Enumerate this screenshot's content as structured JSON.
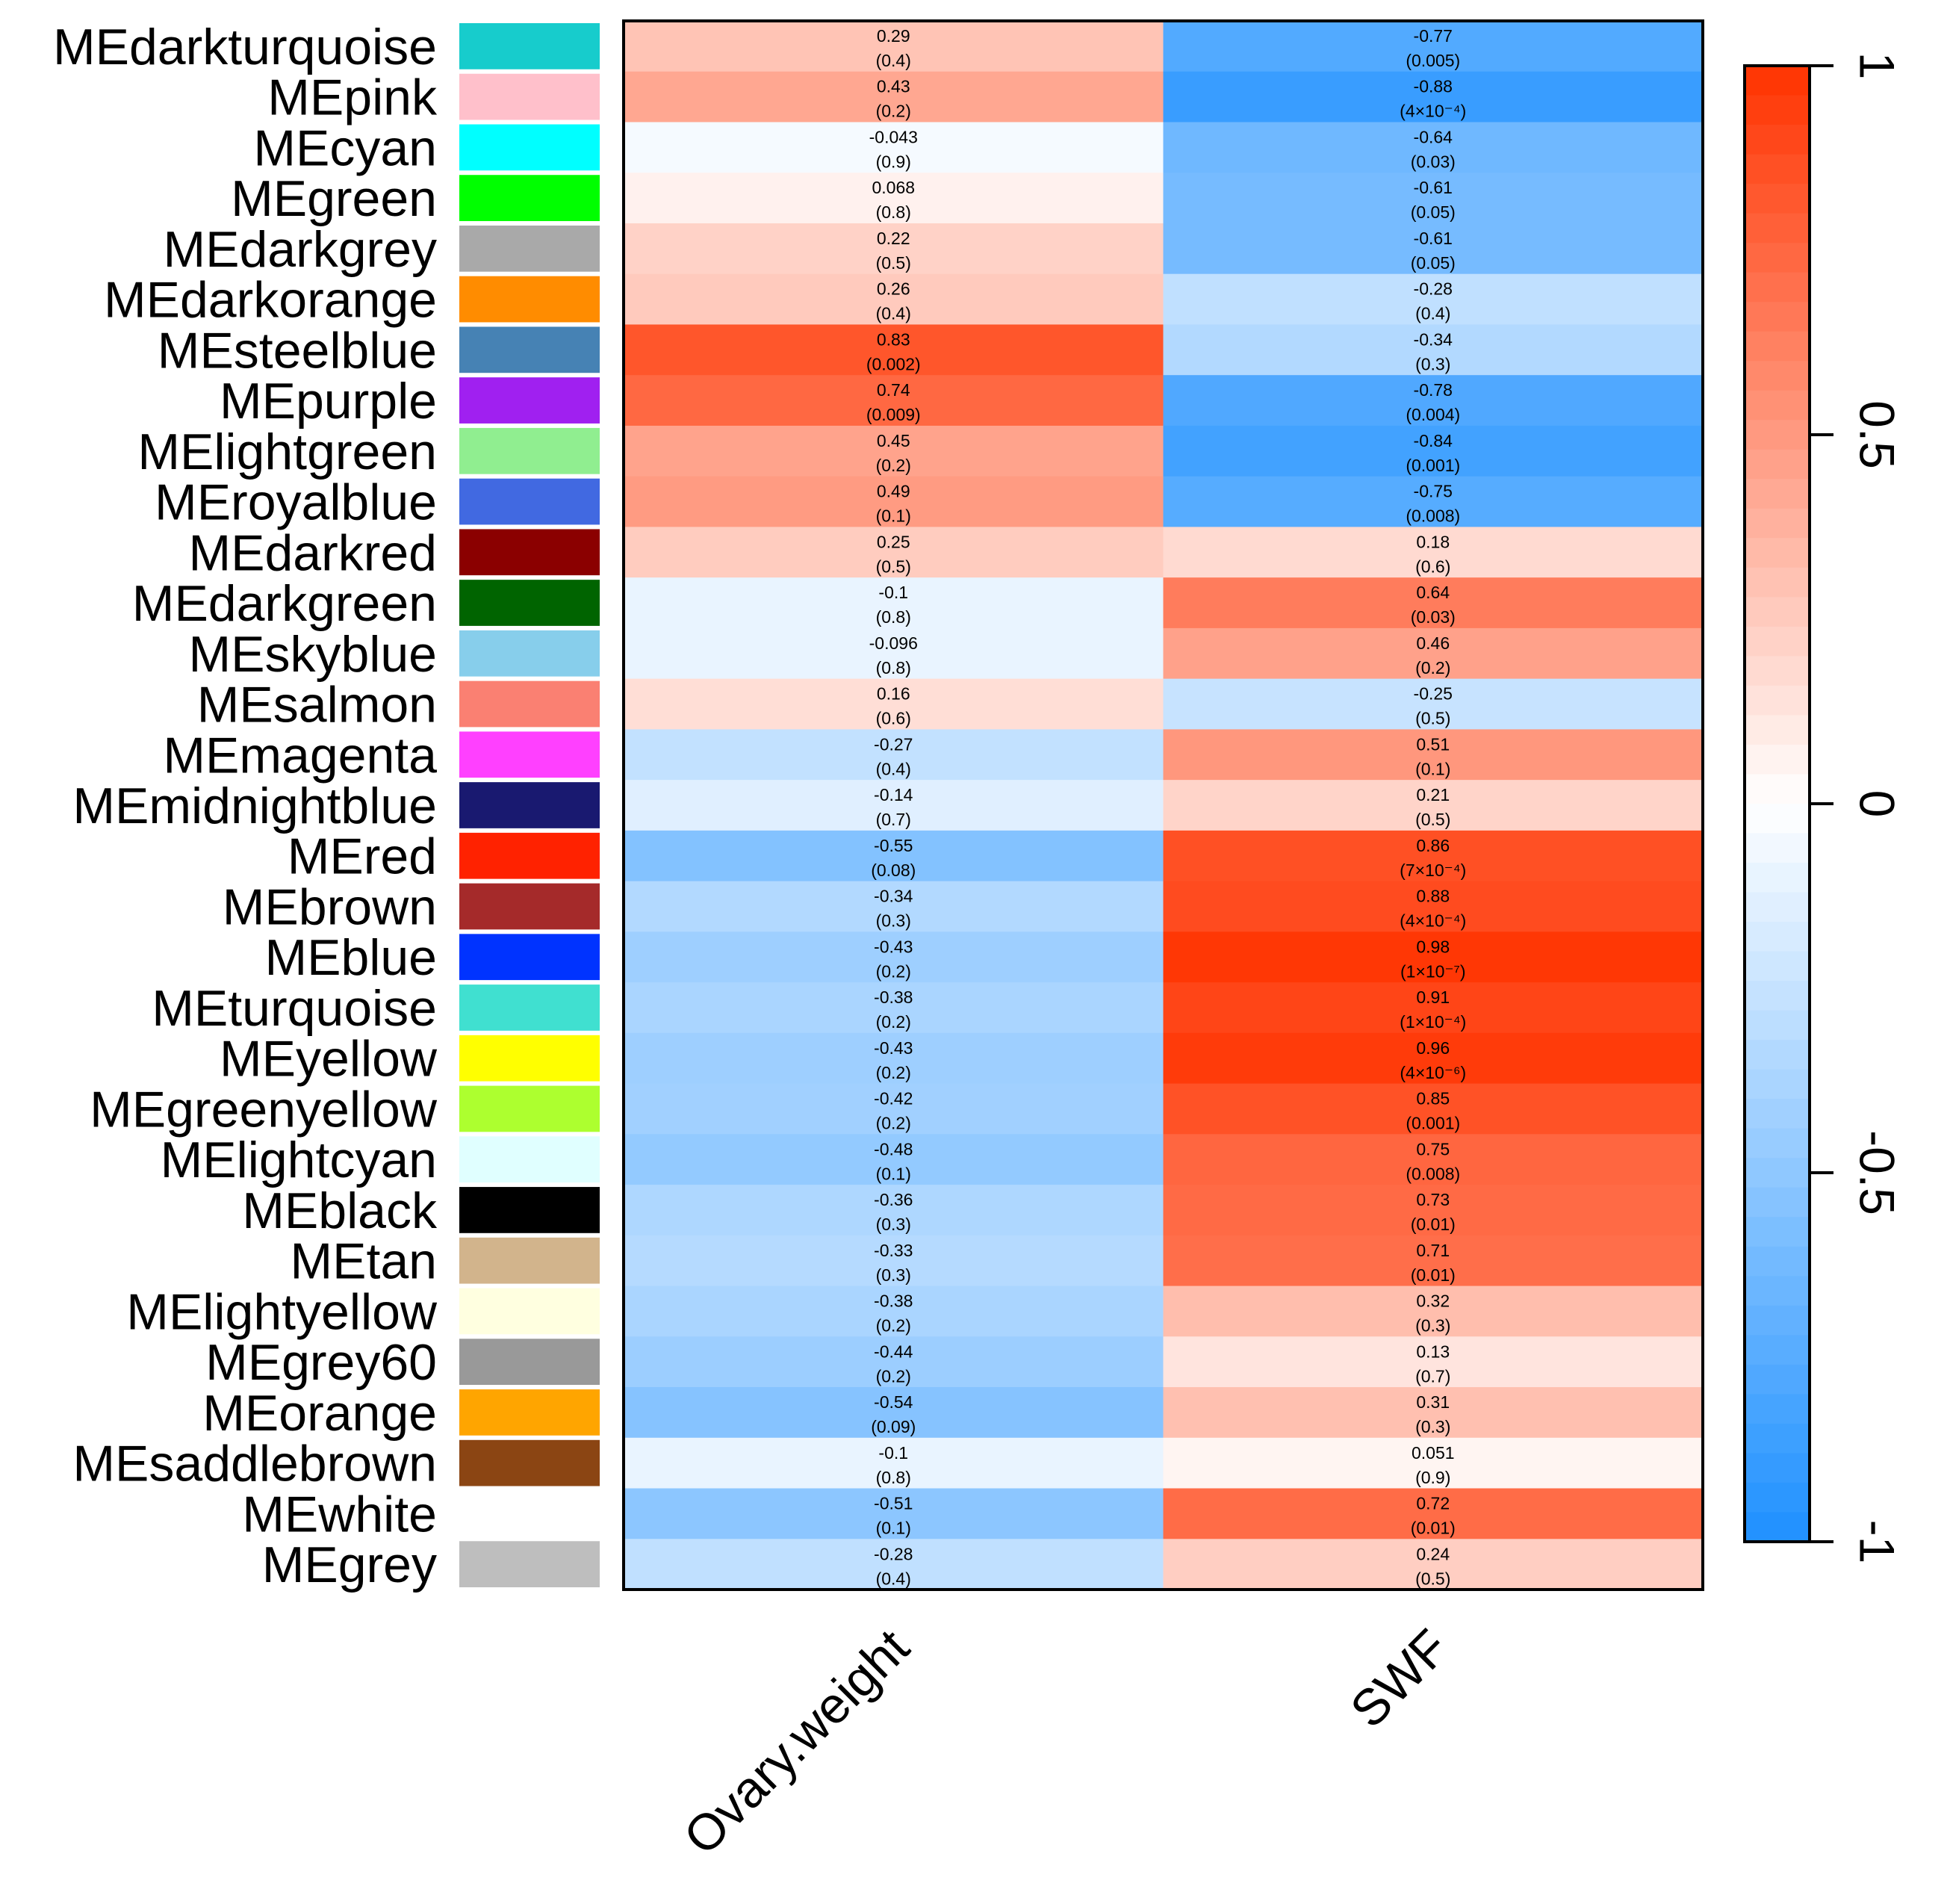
{
  "chart_data": {
    "type": "heatmap",
    "columns": [
      "Ovary.weight",
      "SWF"
    ],
    "rows": [
      {
        "label": "MEdarkturquoise",
        "module_color": "#17CCCC",
        "cells": [
          {
            "r": 0.29,
            "p": "(0.4)"
          },
          {
            "r": -0.77,
            "p": "(0.005)"
          }
        ]
      },
      {
        "label": "MEpink",
        "module_color": "#FFC0CB",
        "cells": [
          {
            "r": 0.43,
            "p": "(0.2)"
          },
          {
            "r": -0.88,
            "p": "(4×10⁻⁴)"
          }
        ]
      },
      {
        "label": "MEcyan",
        "module_color": "#00FFFF",
        "cells": [
          {
            "r": -0.043,
            "p": "(0.9)"
          },
          {
            "r": -0.64,
            "p": "(0.03)"
          }
        ]
      },
      {
        "label": "MEgreen",
        "module_color": "#00FF00",
        "cells": [
          {
            "r": 0.068,
            "p": "(0.8)"
          },
          {
            "r": -0.61,
            "p": "(0.05)"
          }
        ]
      },
      {
        "label": "MEdarkgrey",
        "module_color": "#A9A9A9",
        "cells": [
          {
            "r": 0.22,
            "p": "(0.5)"
          },
          {
            "r": -0.61,
            "p": "(0.05)"
          }
        ]
      },
      {
        "label": "MEdarkorange",
        "module_color": "#FF8C00",
        "cells": [
          {
            "r": 0.26,
            "p": "(0.4)"
          },
          {
            "r": -0.28,
            "p": "(0.4)"
          }
        ]
      },
      {
        "label": "MEsteelblue",
        "module_color": "#4682B4",
        "cells": [
          {
            "r": 0.83,
            "p": "(0.002)"
          },
          {
            "r": -0.34,
            "p": "(0.3)"
          }
        ]
      },
      {
        "label": "MEpurple",
        "module_color": "#A020F0",
        "cells": [
          {
            "r": 0.74,
            "p": "(0.009)"
          },
          {
            "r": -0.78,
            "p": "(0.004)"
          }
        ]
      },
      {
        "label": "MElightgreen",
        "module_color": "#90EE90",
        "cells": [
          {
            "r": 0.45,
            "p": "(0.2)"
          },
          {
            "r": -0.84,
            "p": "(0.001)"
          }
        ]
      },
      {
        "label": "MEroyalblue",
        "module_color": "#4169E1",
        "cells": [
          {
            "r": 0.49,
            "p": "(0.1)"
          },
          {
            "r": -0.75,
            "p": "(0.008)"
          }
        ]
      },
      {
        "label": "MEdarkred",
        "module_color": "#8B0000",
        "cells": [
          {
            "r": 0.25,
            "p": "(0.5)"
          },
          {
            "r": 0.18,
            "p": "(0.6)"
          }
        ]
      },
      {
        "label": "MEdarkgreen",
        "module_color": "#006400",
        "cells": [
          {
            "r": -0.1,
            "p": "(0.8)"
          },
          {
            "r": 0.64,
            "p": "(0.03)"
          }
        ]
      },
      {
        "label": "MEskyblue",
        "module_color": "#87CEEB",
        "cells": [
          {
            "r": -0.096,
            "p": "(0.8)"
          },
          {
            "r": 0.46,
            "p": "(0.2)"
          }
        ]
      },
      {
        "label": "MEsalmon",
        "module_color": "#FA8072",
        "cells": [
          {
            "r": 0.16,
            "p": "(0.6)"
          },
          {
            "r": -0.25,
            "p": "(0.5)"
          }
        ]
      },
      {
        "label": "MEmagenta",
        "module_color": "#FF40FF",
        "cells": [
          {
            "r": -0.27,
            "p": "(0.4)"
          },
          {
            "r": 0.51,
            "p": "(0.1)"
          }
        ]
      },
      {
        "label": "MEmidnightblue",
        "module_color": "#191970",
        "cells": [
          {
            "r": -0.14,
            "p": "(0.7)"
          },
          {
            "r": 0.21,
            "p": "(0.5)"
          }
        ]
      },
      {
        "label": "MEred",
        "module_color": "#FF2200",
        "cells": [
          {
            "r": -0.55,
            "p": "(0.08)"
          },
          {
            "r": 0.86,
            "p": "(7×10⁻⁴)"
          }
        ]
      },
      {
        "label": "MEbrown",
        "module_color": "#A52A2A",
        "cells": [
          {
            "r": -0.34,
            "p": "(0.3)"
          },
          {
            "r": 0.88,
            "p": "(4×10⁻⁴)"
          }
        ]
      },
      {
        "label": "MEblue",
        "module_color": "#0033FF",
        "cells": [
          {
            "r": -0.43,
            "p": "(0.2)"
          },
          {
            "r": 0.98,
            "p": "(1×10⁻⁷)"
          }
        ]
      },
      {
        "label": "MEturquoise",
        "module_color": "#40E0D0",
        "cells": [
          {
            "r": -0.38,
            "p": "(0.2)"
          },
          {
            "r": 0.91,
            "p": "(1×10⁻⁴)"
          }
        ]
      },
      {
        "label": "MEyellow",
        "module_color": "#FFFF00",
        "cells": [
          {
            "r": -0.43,
            "p": "(0.2)"
          },
          {
            "r": 0.96,
            "p": "(4×10⁻⁶)"
          }
        ]
      },
      {
        "label": "MEgreenyellow",
        "module_color": "#ADFF2F",
        "cells": [
          {
            "r": -0.42,
            "p": "(0.2)"
          },
          {
            "r": 0.85,
            "p": "(0.001)"
          }
        ]
      },
      {
        "label": "MElightcyan",
        "module_color": "#E0FFFF",
        "cells": [
          {
            "r": -0.48,
            "p": "(0.1)"
          },
          {
            "r": 0.75,
            "p": "(0.008)"
          }
        ]
      },
      {
        "label": "MEblack",
        "module_color": "#000000",
        "cells": [
          {
            "r": -0.36,
            "p": "(0.3)"
          },
          {
            "r": 0.73,
            "p": "(0.01)"
          }
        ]
      },
      {
        "label": "MEtan",
        "module_color": "#D2B48C",
        "cells": [
          {
            "r": -0.33,
            "p": "(0.3)"
          },
          {
            "r": 0.71,
            "p": "(0.01)"
          }
        ]
      },
      {
        "label": "MElightyellow",
        "module_color": "#FFFFE0",
        "cells": [
          {
            "r": -0.38,
            "p": "(0.2)"
          },
          {
            "r": 0.32,
            "p": "(0.3)"
          }
        ]
      },
      {
        "label": "MEgrey60",
        "module_color": "#999999",
        "cells": [
          {
            "r": -0.44,
            "p": "(0.2)"
          },
          {
            "r": 0.13,
            "p": "(0.7)"
          }
        ]
      },
      {
        "label": "MEorange",
        "module_color": "#FFA500",
        "cells": [
          {
            "r": -0.54,
            "p": "(0.09)"
          },
          {
            "r": 0.31,
            "p": "(0.3)"
          }
        ]
      },
      {
        "label": "MEsaddlebrown",
        "module_color": "#8B4513",
        "cells": [
          {
            "r": -0.1,
            "p": "(0.8)"
          },
          {
            "r": 0.051,
            "p": "(0.9)"
          }
        ]
      },
      {
        "label": "MEwhite",
        "module_color": "#FFFFFF",
        "cells": [
          {
            "r": -0.51,
            "p": "(0.1)"
          },
          {
            "r": 0.72,
            "p": "(0.01)"
          }
        ]
      },
      {
        "label": "MEgrey",
        "module_color": "#BEBEBE",
        "cells": [
          {
            "r": -0.28,
            "p": "(0.4)"
          },
          {
            "r": 0.24,
            "p": "(0.5)"
          }
        ]
      }
    ],
    "color_scale": {
      "range": [
        -1,
        1
      ],
      "low_color": "#1E90FF",
      "mid_color": "#FFFFFF",
      "high_color": "#FF3300",
      "ticks": [
        "-1",
        "-0.5",
        "0",
        "0.5",
        "1"
      ],
      "tick_values": [
        -1,
        -0.5,
        0,
        0.5,
        1
      ]
    },
    "title": "",
    "xlabel": "",
    "ylabel": ""
  }
}
